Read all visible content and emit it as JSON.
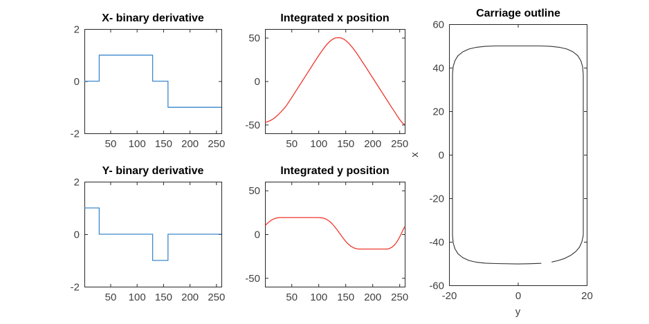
{
  "style": {
    "background": "#ffffff",
    "axis_color": "#262626",
    "tick_label_color": "#3f3f3f",
    "title_color": "#000000",
    "blue_line": "#3a87cc",
    "red_line": "#f0352b",
    "black_line": "#2e2e2e"
  },
  "chart_data": [
    {
      "id": "x-binary-derivative",
      "type": "line",
      "title": "X- binary derivative",
      "xlabel": "",
      "ylabel": "",
      "xlim": [
        1,
        260
      ],
      "ylim": [
        -2,
        2
      ],
      "xticks": [
        50,
        100,
        150,
        200,
        250
      ],
      "yticks": [
        -2,
        0,
        2
      ],
      "grid": false,
      "legend": null,
      "series": [
        {
          "name": "x binary derivative",
          "color": "#3a87cc",
          "width": 1.3,
          "points": [
            [
              1,
              0
            ],
            [
              29,
              0
            ],
            [
              29,
              1
            ],
            [
              130,
              1
            ],
            [
              130,
              0
            ],
            [
              159,
              0
            ],
            [
              159,
              -1
            ],
            [
              260,
              -1
            ]
          ]
        }
      ]
    },
    {
      "id": "integrated-x-position",
      "type": "line",
      "title": "Integrated x position",
      "xlabel": "",
      "ylabel": "",
      "xlim": [
        1,
        260
      ],
      "ylim": [
        -60,
        60
      ],
      "xticks": [
        50,
        100,
        150,
        200,
        250
      ],
      "yticks": [
        -50,
        0,
        50
      ],
      "grid": false,
      "legend": null,
      "series": [
        {
          "name": "integrated x",
          "color": "#f0352b",
          "width": 1.3,
          "points": [
            [
              1,
              -47.5
            ],
            [
              6,
              -46.6
            ],
            [
              12,
              -45
            ],
            [
              18,
              -42.6
            ],
            [
              25,
              -38.9
            ],
            [
              32,
              -34.4
            ],
            [
              40,
              -28.8
            ],
            [
              50,
              -19.4
            ],
            [
              60,
              -9.7
            ],
            [
              70,
              0
            ],
            [
              80,
              9.7
            ],
            [
              90,
              19.4
            ],
            [
              100,
              29
            ],
            [
              107,
              35.3
            ],
            [
              112,
              39.5
            ],
            [
              117,
              43.2
            ],
            [
              122,
              46.2
            ],
            [
              126,
              48.1
            ],
            [
              130,
              49.4
            ],
            [
              134,
              50
            ],
            [
              139,
              50
            ],
            [
              143,
              49.5
            ],
            [
              147,
              48.3
            ],
            [
              152,
              46.1
            ],
            [
              157,
              43.1
            ],
            [
              163,
              38.8
            ],
            [
              170,
              33
            ],
            [
              178,
              25.7
            ],
            [
              187,
              17
            ],
            [
              196,
              8.3
            ],
            [
              205,
              -0.4
            ],
            [
              214,
              -9.1
            ],
            [
              223,
              -17.8
            ],
            [
              230,
              -24.6
            ],
            [
              236,
              -30.4
            ],
            [
              242,
              -36
            ],
            [
              246,
              -40
            ],
            [
              250,
              -43.6
            ],
            [
              253,
              -46
            ],
            [
              256,
              -48.2
            ],
            [
              258,
              -49.3
            ],
            [
              260,
              -49.8
            ]
          ]
        }
      ]
    },
    {
      "id": "carriage-outline",
      "type": "line",
      "title": "Carriage outline",
      "xlabel": "y",
      "ylabel": "x",
      "xlim": [
        -20,
        20
      ],
      "ylim": [
        -60,
        60
      ],
      "xticks": [
        -20,
        0,
        20
      ],
      "yticks": [
        -60,
        -40,
        -20,
        0,
        20,
        40,
        60
      ],
      "grid": false,
      "legend": null,
      "series": [
        {
          "name": "carriage outline",
          "color": "#2e2e2e",
          "width": 1.1,
          "points": [
            [
              9.8,
              -49.3
            ],
            [
              11.5,
              -48.7
            ],
            [
              13.5,
              -47.7
            ],
            [
              15.3,
              -46.3
            ],
            [
              16.8,
              -44.5
            ],
            [
              17.9,
              -42.4
            ],
            [
              18.6,
              -40
            ],
            [
              19,
              -37
            ],
            [
              19,
              37
            ],
            [
              18.8,
              40.5
            ],
            [
              18.3,
              43.2
            ],
            [
              17.4,
              45.5
            ],
            [
              16,
              47.3
            ],
            [
              14.2,
              48.6
            ],
            [
              12,
              49.4
            ],
            [
              9.5,
              49.8
            ],
            [
              6.5,
              50
            ],
            [
              0,
              50
            ],
            [
              -6.5,
              50
            ],
            [
              -9.5,
              49.8
            ],
            [
              -12,
              49.4
            ],
            [
              -14.2,
              48.6
            ],
            [
              -16,
              47.3
            ],
            [
              -17.4,
              45.5
            ],
            [
              -18.3,
              43.2
            ],
            [
              -18.8,
              40.5
            ],
            [
              -19,
              37
            ],
            [
              -19,
              -37
            ],
            [
              -18.8,
              -40.5
            ],
            [
              -18.3,
              -43.2
            ],
            [
              -17.4,
              -45.5
            ],
            [
              -16,
              -47.3
            ],
            [
              -14.2,
              -48.6
            ],
            [
              -12,
              -49.4
            ],
            [
              -9.5,
              -49.8
            ],
            [
              -6.5,
              -50
            ],
            [
              0,
              -50.2
            ],
            [
              3,
              -50.1
            ],
            [
              6.8,
              -49.9
            ]
          ]
        }
      ]
    },
    {
      "id": "y-binary-derivative",
      "type": "line",
      "title": "Y- binary derivative",
      "xlabel": "",
      "ylabel": "",
      "xlim": [
        1,
        260
      ],
      "ylim": [
        -2,
        2
      ],
      "xticks": [
        50,
        100,
        150,
        200,
        250
      ],
      "yticks": [
        -2,
        0,
        2
      ],
      "grid": false,
      "legend": null,
      "series": [
        {
          "name": "y binary derivative",
          "color": "#3a87cc",
          "width": 1.3,
          "points": [
            [
              1,
              1
            ],
            [
              29,
              1
            ],
            [
              29,
              0
            ],
            [
              130,
              0
            ],
            [
              130,
              -1
            ],
            [
              159,
              -1
            ],
            [
              159,
              0
            ],
            [
              260,
              0
            ]
          ]
        }
      ]
    },
    {
      "id": "integrated-y-position",
      "type": "line",
      "title": "Integrated y position",
      "xlabel": "",
      "ylabel": "",
      "xlim": [
        1,
        260
      ],
      "ylim": [
        -60,
        60
      ],
      "xticks": [
        50,
        100,
        150,
        200,
        250
      ],
      "yticks": [
        -50,
        0,
        50
      ],
      "grid": false,
      "legend": null,
      "series": [
        {
          "name": "integrated y",
          "color": "#f0352b",
          "width": 1.3,
          "points": [
            [
              1,
              9.5
            ],
            [
              4,
              11.5
            ],
            [
              8,
              13.8
            ],
            [
              12,
              15.7
            ],
            [
              16,
              17.1
            ],
            [
              20,
              18.1
            ],
            [
              24,
              18.7
            ],
            [
              28,
              19
            ],
            [
              100,
              19
            ],
            [
              105,
              18.8
            ],
            [
              110,
              18.2
            ],
            [
              115,
              17
            ],
            [
              120,
              15
            ],
            [
              125,
              12.2
            ],
            [
              130,
              8.7
            ],
            [
              135,
              4.7
            ],
            [
              140,
              0.4
            ],
            [
              145,
              -3.9
            ],
            [
              150,
              -7.8
            ],
            [
              155,
              -11.1
            ],
            [
              160,
              -13.7
            ],
            [
              165,
              -15.5
            ],
            [
              170,
              -16.6
            ],
            [
              175,
              -17
            ],
            [
              228,
              -17
            ],
            [
              232,
              -16.2
            ],
            [
              237,
              -14.5
            ],
            [
              242,
              -11.6
            ],
            [
              246,
              -8.2
            ],
            [
              250,
              -3.9
            ],
            [
              254,
              1.2
            ],
            [
              257,
              5.2
            ],
            [
              259,
              7.5
            ],
            [
              260,
              8.5
            ]
          ]
        }
      ]
    }
  ]
}
